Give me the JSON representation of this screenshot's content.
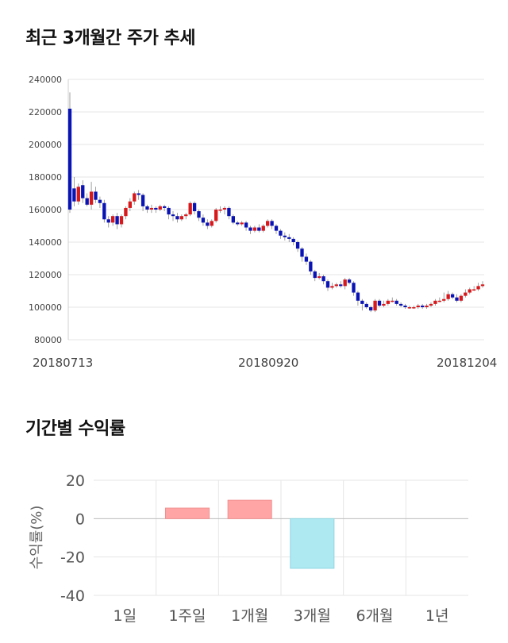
{
  "sections": {
    "price_title": "최근 3개월간 주가 추세",
    "returns_title": "기간별 수익률"
  },
  "colors": {
    "up": "#d7191c",
    "down": "#0a14b4",
    "positive_bar": "#ffa5a5",
    "negative_bar": "#aee9f2",
    "grid": "#e6e6e6"
  },
  "chart_data": [
    {
      "type": "candlestick",
      "title": "최근 3개월간 주가 추세",
      "y_ticks": [
        "240000",
        "220000",
        "200000",
        "180000",
        "160000",
        "140000",
        "120000",
        "100000",
        "80000"
      ],
      "ylim": [
        80000,
        240000
      ],
      "x_labels": [
        "20180713",
        "20180920",
        "20181204"
      ],
      "grid": true,
      "candles": [
        [
          222000,
          160000,
          232000,
          158000
        ],
        [
          173000,
          165000,
          180000,
          162000
        ],
        [
          165000,
          174000,
          176000,
          163000
        ],
        [
          175000,
          167000,
          178000,
          164000
        ],
        [
          167000,
          163000,
          170000,
          162000
        ],
        [
          163000,
          171000,
          177000,
          160000
        ],
        [
          171000,
          166000,
          174000,
          164000
        ],
        [
          166000,
          164000,
          168000,
          161000
        ],
        [
          164000,
          154000,
          166000,
          152000
        ],
        [
          154000,
          152000,
          156000,
          149000
        ],
        [
          152000,
          156000,
          157000,
          150000
        ],
        [
          156000,
          151000,
          158000,
          148000
        ],
        [
          151000,
          156000,
          157000,
          149000
        ],
        [
          156000,
          161000,
          162000,
          154000
        ],
        [
          161000,
          165000,
          167000,
          159000
        ],
        [
          165000,
          170000,
          171000,
          163000
        ],
        [
          170000,
          169000,
          172000,
          166000
        ],
        [
          169000,
          162000,
          170000,
          159000
        ],
        [
          162000,
          160000,
          163000,
          158000
        ],
        [
          160000,
          161000,
          163000,
          158000
        ],
        [
          161000,
          160000,
          162000,
          158000
        ],
        [
          160000,
          162000,
          163000,
          159000
        ],
        [
          162000,
          161000,
          163000,
          159000
        ],
        [
          161000,
          157000,
          162000,
          154000
        ],
        [
          157000,
          156000,
          159000,
          153000
        ],
        [
          156000,
          154000,
          158000,
          152000
        ],
        [
          154000,
          156000,
          157000,
          153000
        ],
        [
          156000,
          157000,
          158000,
          154000
        ],
        [
          157000,
          164000,
          165000,
          156000
        ],
        [
          164000,
          159000,
          165000,
          157000
        ],
        [
          159000,
          155000,
          160000,
          153000
        ],
        [
          155000,
          152000,
          157000,
          150000
        ],
        [
          152000,
          150000,
          154000,
          148000
        ],
        [
          150000,
          153000,
          154000,
          149000
        ],
        [
          153000,
          160000,
          161000,
          152000
        ],
        [
          160000,
          160000,
          162000,
          158000
        ],
        [
          160000,
          161000,
          162000,
          157000
        ],
        [
          161000,
          156000,
          162000,
          154000
        ],
        [
          156000,
          152000,
          157000,
          151000
        ],
        [
          152000,
          151000,
          153000,
          150000
        ],
        [
          151000,
          152000,
          153000,
          150000
        ],
        [
          152000,
          149000,
          153000,
          147000
        ],
        [
          149000,
          147000,
          150000,
          145000
        ],
        [
          147000,
          149000,
          150000,
          146000
        ],
        [
          149000,
          147000,
          151000,
          146000
        ],
        [
          147000,
          150000,
          151000,
          146000
        ],
        [
          150000,
          153000,
          154000,
          149000
        ],
        [
          153000,
          150000,
          154000,
          148000
        ],
        [
          150000,
          147000,
          151000,
          145000
        ],
        [
          147000,
          144000,
          148000,
          142000
        ],
        [
          144000,
          143000,
          146000,
          141000
        ],
        [
          143000,
          142000,
          145000,
          140000
        ],
        [
          142000,
          140000,
          143000,
          138000
        ],
        [
          140000,
          136000,
          141000,
          134000
        ],
        [
          136000,
          131000,
          137000,
          128000
        ],
        [
          131000,
          128000,
          133000,
          126000
        ],
        [
          128000,
          122000,
          129000,
          120000
        ],
        [
          122000,
          118000,
          123000,
          116000
        ],
        [
          118000,
          119000,
          121000,
          117000
        ],
        [
          119000,
          116000,
          120000,
          114000
        ],
        [
          116000,
          112000,
          117000,
          110000
        ],
        [
          112000,
          113000,
          115000,
          111000
        ],
        [
          113000,
          114000,
          115000,
          112000
        ],
        [
          114000,
          113000,
          116000,
          112000
        ],
        [
          113000,
          117000,
          118000,
          111000
        ],
        [
          117000,
          115000,
          118000,
          114000
        ],
        [
          115000,
          109000,
          116000,
          107000
        ],
        [
          109000,
          104000,
          110000,
          101000
        ],
        [
          104000,
          102000,
          105000,
          98000
        ],
        [
          102000,
          100000,
          103000,
          99000
        ],
        [
          100000,
          98000,
          101000,
          97000
        ],
        [
          98000,
          104000,
          105000,
          97000
        ],
        [
          104000,
          101000,
          105000,
          100000
        ],
        [
          101000,
          102000,
          104000,
          100000
        ],
        [
          102000,
          104000,
          105000,
          101000
        ],
        [
          104000,
          104000,
          106000,
          103000
        ],
        [
          104000,
          102000,
          105000,
          101000
        ],
        [
          102000,
          101000,
          103000,
          100000
        ],
        [
          101000,
          100000,
          102000,
          99000
        ],
        [
          100000,
          100000,
          101000,
          99000
        ],
        [
          100000,
          100000,
          101000,
          99000
        ],
        [
          100000,
          101000,
          102000,
          99000
        ],
        [
          101000,
          100000,
          102000,
          99000
        ],
        [
          100000,
          101000,
          102000,
          99000
        ],
        [
          101000,
          102000,
          103000,
          100000
        ],
        [
          102000,
          104000,
          105000,
          101000
        ],
        [
          104000,
          104000,
          106000,
          103000
        ],
        [
          104000,
          105000,
          109000,
          103000
        ],
        [
          105000,
          108000,
          110000,
          104000
        ],
        [
          108000,
          106000,
          109000,
          105000
        ],
        [
          106000,
          104000,
          108000,
          103000
        ],
        [
          104000,
          107000,
          108000,
          103000
        ],
        [
          107000,
          109000,
          111000,
          106000
        ],
        [
          109000,
          111000,
          112000,
          108000
        ],
        [
          111000,
          111000,
          113000,
          110000
        ],
        [
          111000,
          113000,
          115000,
          110000
        ],
        [
          113000,
          114000,
          116000,
          112000
        ]
      ]
    },
    {
      "type": "bar",
      "title": "기간별 수익률",
      "ylabel": "수익률(%)",
      "categories": [
        "1일",
        "1주일",
        "1개월",
        "3개월",
        "6개월",
        "1년"
      ],
      "values": [
        0,
        5.5,
        9.6,
        -25.9,
        0,
        0
      ],
      "y_ticks": [
        "20",
        "0",
        "-20",
        "-40"
      ],
      "ylim": [
        -40,
        20
      ],
      "grid": true
    }
  ]
}
